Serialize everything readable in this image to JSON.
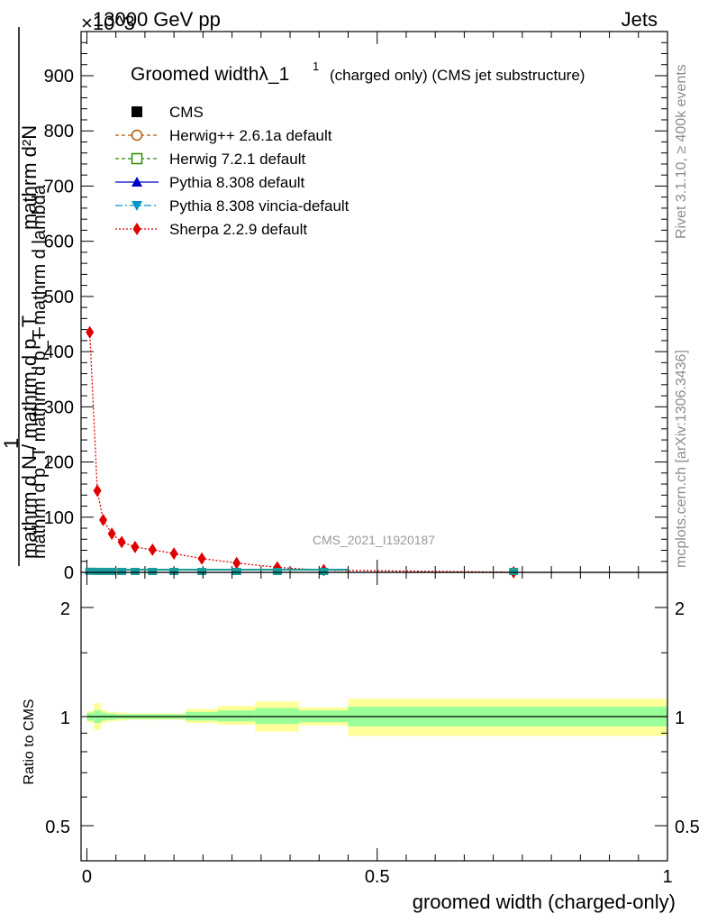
{
  "header": {
    "energy": "13000 GeV pp",
    "process": "Jets",
    "exponent": "×10^3",
    "rivet": "Rivet 3.1.10, ≥ 400k events",
    "mcplots": "mcplots.cern.ch [arXiv:1306.3436]",
    "analysis_id": "CMS_2021_I1920187"
  },
  "chart_data": [
    {
      "type": "line",
      "panel": "main",
      "title": "Groomed width λ_1^1 (charged only) (CMS jet substructure)",
      "title_main": "Groomed widthλ_1",
      "title_sup": "1",
      "title_rest": "(charged only) (CMS jet substructure)",
      "ylabel_top": "mathrm d²N",
      "ylabel_frac": "mathrm d p_T mathrm d p_T mathrm d lambda",
      "ylabel_one": "1",
      "ylabel_bottom": "mathrm d N / mathrm d p_T",
      "xlabel": "groomed width (charged-only)",
      "ylim": [
        0,
        980
      ],
      "xlim": [
        -0.01,
        1.0
      ],
      "y_ticks": [
        "0",
        "100",
        "200",
        "300",
        "400",
        "500",
        "600",
        "700",
        "800",
        "900"
      ],
      "x_ticks": [
        "0",
        "0.5",
        "1"
      ],
      "legend": [
        {
          "label": "CMS",
          "color": "#000000",
          "marker": "square"
        },
        {
          "label": "Herwig++ 2.6.1a default",
          "color": "#b05a00",
          "marker": "circle-open",
          "dash": "4,3"
        },
        {
          "label": "Herwig 7.2.1 default",
          "color": "#2e8b00",
          "marker": "square-open",
          "dash": "4,3"
        },
        {
          "label": "Pythia 8.308 default",
          "color": "#0000cc",
          "marker": "triangle-up"
        },
        {
          "label": "Pythia 8.308 vincia-default",
          "color": "#0096c8",
          "marker": "triangle-down",
          "dash": "8,3,2,3"
        },
        {
          "label": "Sherpa 2.2.9 default",
          "color": "#e00000",
          "marker": "diamond",
          "dash": "2,2"
        }
      ],
      "series": [
        {
          "name": "Sherpa 2.2.9 default",
          "x": [
            0.005,
            0.018,
            0.028,
            0.043,
            0.06,
            0.083,
            0.113,
            0.15,
            0.198,
            0.258,
            0.328,
            0.408,
            0.735
          ],
          "y": [
            435,
            148,
            95,
            70,
            55,
            46,
            41,
            34,
            25,
            17,
            9,
            4,
            0.3
          ]
        },
        {
          "name": "CMS",
          "x": [
            0.005,
            0.018,
            0.028,
            0.043,
            0.06,
            0.083,
            0.113,
            0.15,
            0.198,
            0.258,
            0.328,
            0.408,
            0.735
          ],
          "y": [
            0.4,
            0.15,
            0.1,
            0.07,
            0.05,
            0.04,
            0.04,
            0.03,
            0.025,
            0.017,
            0.009,
            0.004,
            0.0003
          ]
        }
      ]
    },
    {
      "type": "area",
      "panel": "ratio",
      "ylabel": "Ratio to CMS",
      "xlabel": "groomed width (charged-only)",
      "y_ticks": [
        "0.5",
        "1",
        "2"
      ],
      "x_ticks": [
        "0",
        "0.5",
        "1"
      ],
      "ylim": [
        0.4,
        2.5
      ],
      "reference_line": 1,
      "bins": [
        0.0,
        0.012,
        0.025,
        0.035,
        0.05,
        0.07,
        0.095,
        0.13,
        0.17,
        0.225,
        0.29,
        0.365,
        0.45,
        1.0
      ],
      "band_inner": [
        [
          0.975,
          1.025
        ],
        [
          0.96,
          1.04
        ],
        [
          0.975,
          1.025
        ],
        [
          0.98,
          1.02
        ],
        [
          0.985,
          1.015
        ],
        [
          0.985,
          1.015
        ],
        [
          0.985,
          1.015
        ],
        [
          0.985,
          1.015
        ],
        [
          0.975,
          1.03
        ],
        [
          0.97,
          1.04
        ],
        [
          0.955,
          1.055
        ],
        [
          0.965,
          1.04
        ],
        [
          0.94,
          1.065
        ]
      ],
      "band_outer": [
        [
          0.965,
          1.035
        ],
        [
          0.92,
          1.09
        ],
        [
          0.96,
          1.04
        ],
        [
          0.97,
          1.03
        ],
        [
          0.975,
          1.025
        ],
        [
          0.98,
          1.02
        ],
        [
          0.98,
          1.02
        ],
        [
          0.98,
          1.02
        ],
        [
          0.96,
          1.05
        ],
        [
          0.95,
          1.07
        ],
        [
          0.91,
          1.1
        ],
        [
          0.945,
          1.06
        ],
        [
          0.885,
          1.12
        ]
      ],
      "colors": {
        "inner": "#99ff99",
        "outer": "#ffff99"
      }
    }
  ]
}
